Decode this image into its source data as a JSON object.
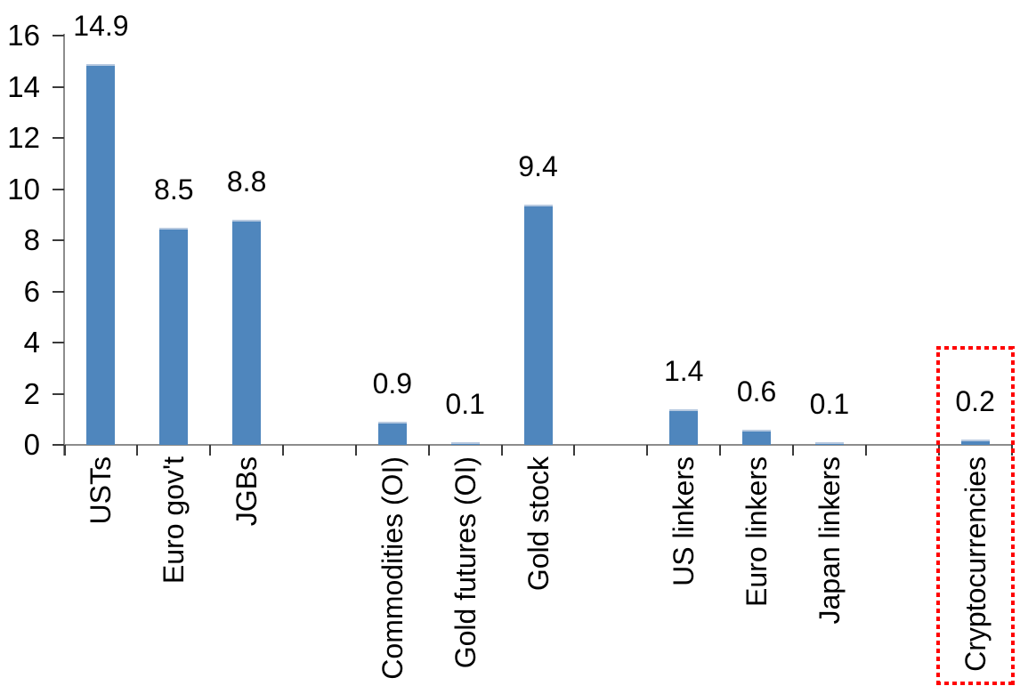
{
  "chart_data": {
    "type": "bar",
    "title": "",
    "xlabel": "",
    "ylabel": "",
    "categories": [
      "USTs",
      "Euro gov't",
      "JGBs",
      "Commodities (OI)",
      "Gold futures (OI)",
      "Gold stock",
      "US linkers",
      "Euro linkers",
      "Japan linkers",
      "Cryptocurrencies"
    ],
    "values": [
      14.9,
      8.5,
      8.8,
      0.9,
      0.1,
      9.4,
      1.4,
      0.6,
      0.1,
      0.2
    ],
    "value_labels": [
      "14.9",
      "8.5",
      "8.8",
      "0.9",
      "0.1",
      "9.4",
      "1.4",
      "0.6",
      "0.1",
      "0.2"
    ],
    "groups": [
      [
        "USTs",
        "Euro gov't",
        "JGBs"
      ],
      [
        "Commodities (OI)",
        "Gold futures (OI)",
        "Gold stock"
      ],
      [
        "US linkers",
        "Euro linkers",
        "Japan linkers"
      ],
      [
        "Cryptocurrencies"
      ]
    ],
    "ylim": [
      0,
      16
    ],
    "yticks": [
      0,
      2,
      4,
      6,
      8,
      10,
      12,
      14,
      16
    ],
    "grid": false,
    "legend": null,
    "colors": {
      "bar_fill": "#4F86BD",
      "bar_top_edge": "#B7C9E0",
      "axis_line": "#8C8C8C",
      "tick": "#3A3A3A",
      "text": "#000000",
      "highlight_box": "#FF0000"
    },
    "highlight": {
      "category": "Cryptocurrencies",
      "style": "dotted-box"
    }
  }
}
